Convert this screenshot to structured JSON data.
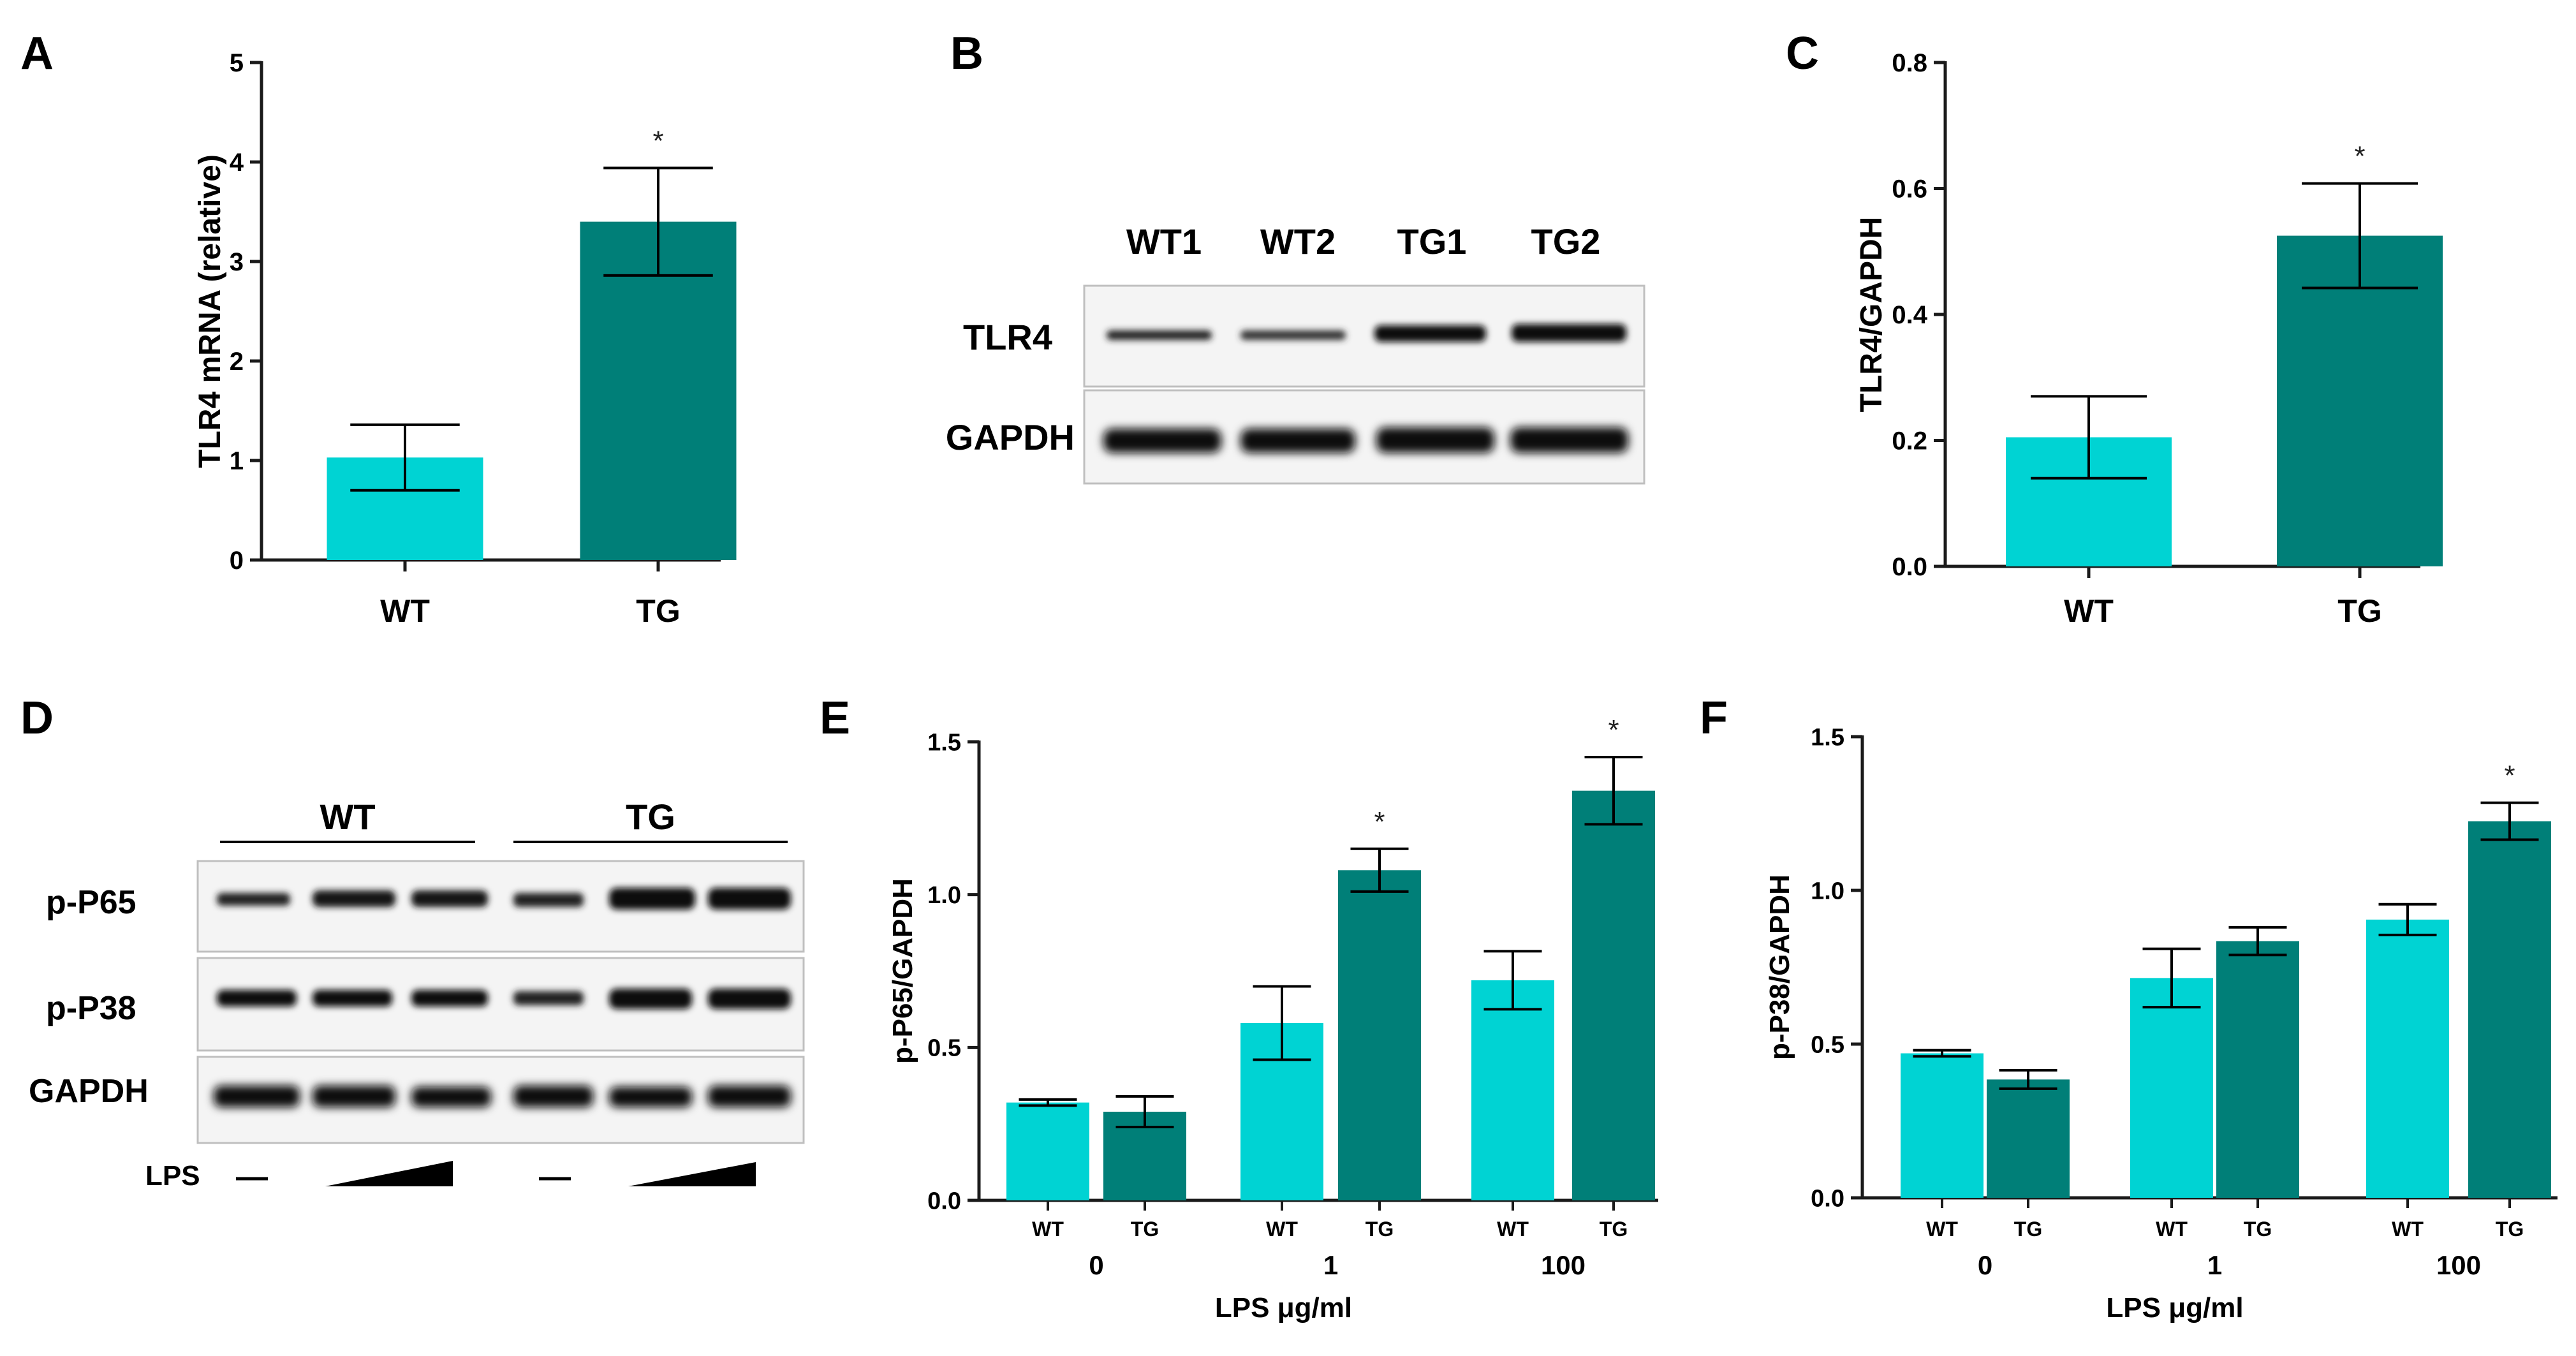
{
  "colors": {
    "wt": "#00D3D3",
    "tg": "#007F78",
    "axis": "#1a1a1a"
  },
  "panels": {
    "A": {
      "letter": "A"
    },
    "B": {
      "letter": "B",
      "lanes": [
        "WT1",
        "WT2",
        "TG1",
        "TG2"
      ],
      "rows": [
        "TLR4",
        "GAPDH"
      ]
    },
    "C": {
      "letter": "C"
    },
    "D": {
      "letter": "D",
      "groups": [
        "WT",
        "TG"
      ],
      "rows": [
        "p-P65",
        "p-P38",
        "GAPDH"
      ],
      "lps_label": "LPS"
    },
    "E": {
      "letter": "E"
    },
    "F": {
      "letter": "F"
    }
  },
  "chart_data": [
    {
      "panel": "A",
      "type": "bar",
      "categories": [
        "WT",
        "TG"
      ],
      "values": [
        1.03,
        3.4
      ],
      "errors": [
        0.33,
        0.54
      ],
      "significance": [
        "",
        "*"
      ],
      "title": "",
      "xlabel": "",
      "ylabel": "TLR4 mRNA (relative)",
      "ylim": [
        0,
        5
      ],
      "yticks": [
        "0",
        "1",
        "2",
        "3",
        "4",
        "5"
      ],
      "ytick_values": [
        0,
        1,
        2,
        3,
        4,
        5
      ],
      "grid": false
    },
    {
      "panel": "C",
      "type": "bar",
      "categories": [
        "WT",
        "TG"
      ],
      "values": [
        0.205,
        0.525
      ],
      "errors": [
        0.065,
        0.083
      ],
      "significance": [
        "",
        "*"
      ],
      "title": "",
      "xlabel": "",
      "ylabel": "TLR4/GAPDH",
      "ylim": [
        0,
        0.8
      ],
      "yticks": [
        "0.0",
        "0.2",
        "0.4",
        "0.6",
        "0.8"
      ],
      "ytick_values": [
        0,
        0.2,
        0.4,
        0.6,
        0.8
      ],
      "grid": false
    },
    {
      "panel": "E",
      "type": "bar",
      "groups": [
        "0",
        "1",
        "100"
      ],
      "series": [
        {
          "name": "WT",
          "values": [
            0.32,
            0.58,
            0.72
          ],
          "errors": [
            0.01,
            0.12,
            0.095
          ]
        },
        {
          "name": "TG",
          "values": [
            0.29,
            1.08,
            1.34
          ],
          "errors": [
            0.05,
            0.07,
            0.11
          ]
        }
      ],
      "significance": [
        [
          "",
          ""
        ],
        [
          "",
          "*"
        ],
        [
          "",
          "*"
        ]
      ],
      "title": "",
      "xlabel": "LPS μg/ml",
      "ylabel": "p-P65/GAPDH",
      "ylim": [
        0,
        1.5
      ],
      "yticks": [
        "0.0",
        "0.5",
        "1.0",
        "1.5"
      ],
      "ytick_values": [
        0,
        0.5,
        1.0,
        1.5
      ],
      "grid": false
    },
    {
      "panel": "F",
      "type": "bar",
      "groups": [
        "0",
        "1",
        "100"
      ],
      "series": [
        {
          "name": "WT",
          "values": [
            0.47,
            0.715,
            0.905
          ],
          "errors": [
            0.01,
            0.095,
            0.05
          ]
        },
        {
          "name": "TG",
          "values": [
            0.385,
            0.835,
            1.225
          ],
          "errors": [
            0.03,
            0.045,
            0.06
          ]
        }
      ],
      "significance": [
        [
          "",
          ""
        ],
        [
          "",
          ""
        ],
        [
          "",
          "*"
        ]
      ],
      "title": "",
      "xlabel": "LPS μg/ml",
      "ylabel": "p-P38/GAPDH",
      "ylim": [
        0,
        1.5
      ],
      "yticks": [
        "0.0",
        "0.5",
        "1.0",
        "1.5"
      ],
      "ytick_values": [
        0,
        0.5,
        1.0,
        1.5
      ],
      "grid": false
    }
  ]
}
